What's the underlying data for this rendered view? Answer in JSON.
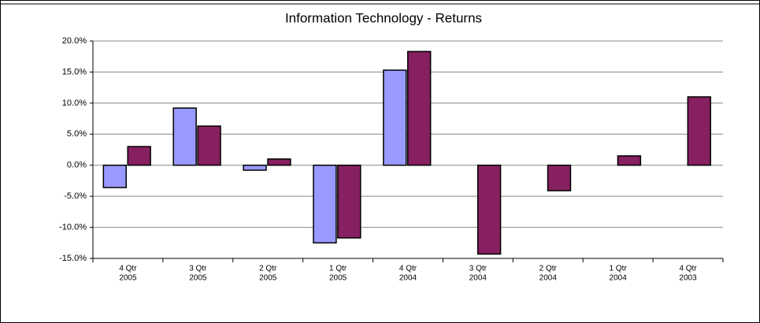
{
  "chart_data": {
    "type": "bar",
    "title": "Information Technology  -  Returns",
    "categories": [
      [
        "4 Qtr",
        "2005"
      ],
      [
        "3 Qtr",
        "2005"
      ],
      [
        "2 Qtr",
        "2005"
      ],
      [
        "1 Qtr",
        "2005"
      ],
      [
        "4 Qtr",
        "2004"
      ],
      [
        "3 Qtr",
        "2004"
      ],
      [
        "2 Qtr",
        "2004"
      ],
      [
        "1 Qtr",
        "2004"
      ],
      [
        "4 Qtr",
        "2003"
      ]
    ],
    "series": [
      {
        "color": "#9999ff",
        "values": [
          -3.6,
          9.2,
          -0.8,
          -12.5,
          15.3,
          null,
          null,
          null,
          null
        ]
      },
      {
        "color": "#862060",
        "values": [
          3.0,
          6.3,
          1.0,
          -11.7,
          18.3,
          -14.3,
          -4.1,
          1.5,
          11.0
        ]
      }
    ],
    "ylim": [
      -15,
      20
    ],
    "yticks": [
      {
        "value": -15,
        "label": "-15.0%"
      },
      {
        "value": -10,
        "label": "-10.0%"
      },
      {
        "value": -5,
        "label": "-5.0%"
      },
      {
        "value": 0,
        "label": "0.0%"
      },
      {
        "value": 5,
        "label": "5.0%"
      },
      {
        "value": 10,
        "label": "10.0%"
      },
      {
        "value": 15,
        "label": "15.0%"
      },
      {
        "value": 20,
        "label": "20.0%"
      }
    ],
    "grid": true
  }
}
